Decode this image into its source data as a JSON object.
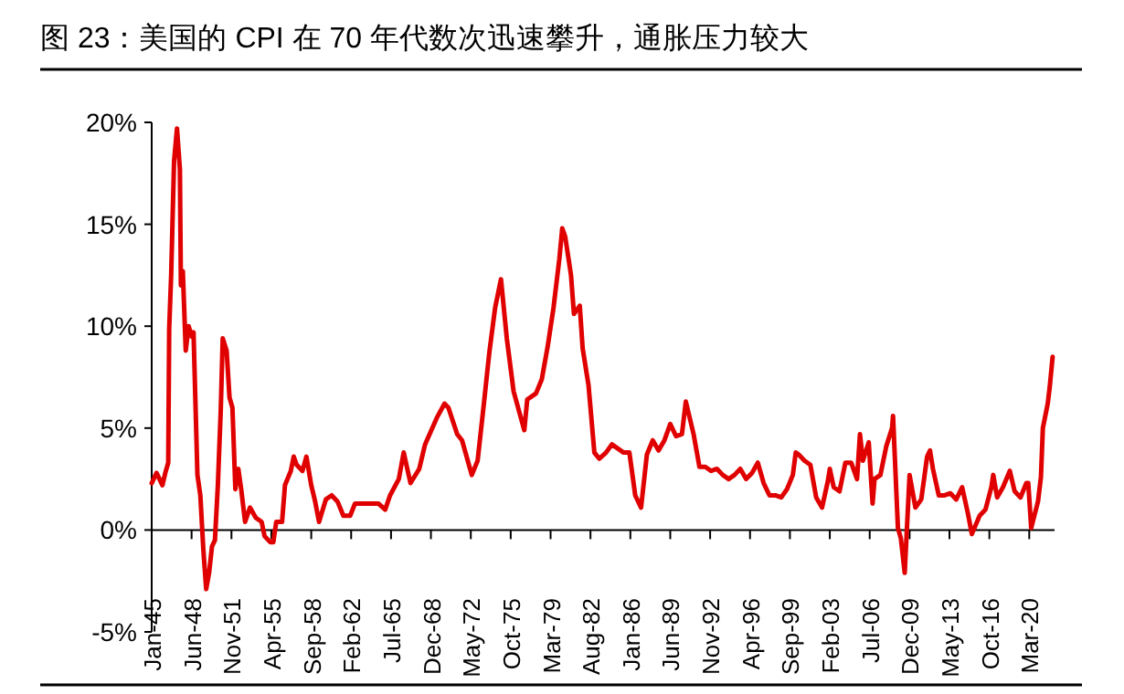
{
  "chart_data": {
    "type": "line",
    "title": "图 23：美国的 CPI 在 70 年代数次迅速攀升，通胀压力较大",
    "x": [
      "1945-01",
      "1945-06",
      "1945-12",
      "1946-03",
      "1946-06",
      "1946-07",
      "1946-09",
      "1946-12",
      "1947-03",
      "1947-06",
      "1947-07",
      "1947-09",
      "1947-12",
      "1948-03",
      "1948-06",
      "1948-08",
      "1948-12",
      "1949-03",
      "1949-06",
      "1949-09",
      "1949-12",
      "1950-03",
      "1950-06",
      "1950-09",
      "1950-12",
      "1951-02",
      "1951-06",
      "1951-09",
      "1951-12",
      "1952-03",
      "1952-06",
      "1952-09",
      "1953-01",
      "1953-06",
      "1953-12",
      "1954-06",
      "1954-09",
      "1955-03",
      "1955-06",
      "1955-09",
      "1956-03",
      "1956-06",
      "1956-12",
      "1957-03",
      "1957-06",
      "1957-12",
      "1958-04",
      "1958-09",
      "1959-01",
      "1959-05",
      "1959-12",
      "1960-06",
      "1960-12",
      "1961-06",
      "1962-01",
      "1962-06",
      "1963-06",
      "1964-06",
      "1965-01",
      "1965-06",
      "1966-03",
      "1966-08",
      "1967-03",
      "1967-12",
      "1968-06",
      "1969-06",
      "1970-02",
      "1970-06",
      "1971-03",
      "1971-08",
      "1972-06",
      "1972-12",
      "1973-06",
      "1973-12",
      "1974-06",
      "1974-12",
      "1975-06",
      "1976-01",
      "1976-12",
      "1977-03",
      "1977-12",
      "1978-06",
      "1978-12",
      "1979-06",
      "1979-12",
      "1980-03",
      "1980-06",
      "1980-12",
      "1981-03",
      "1981-09",
      "1981-12",
      "1982-06",
      "1982-12",
      "1983-05",
      "1983-12",
      "1984-06",
      "1985-06",
      "1985-12",
      "1986-06",
      "1986-12",
      "1987-06",
      "1987-12",
      "1988-06",
      "1988-12",
      "1989-06",
      "1989-12",
      "1990-06",
      "1990-10",
      "1991-06",
      "1991-12",
      "1992-06",
      "1992-12",
      "1993-06",
      "1993-12",
      "1994-06",
      "1994-12",
      "1995-06",
      "1995-12",
      "1996-06",
      "1996-12",
      "1997-06",
      "1997-12",
      "1998-06",
      "1998-12",
      "1999-06",
      "1999-12",
      "2000-03",
      "2000-06",
      "2000-12",
      "2001-06",
      "2001-12",
      "2002-06",
      "2002-12",
      "2003-02",
      "2003-06",
      "2003-12",
      "2004-06",
      "2004-12",
      "2005-06",
      "2005-09",
      "2005-12",
      "2006-06",
      "2006-10",
      "2006-12",
      "2007-06",
      "2007-12",
      "2008-06",
      "2008-07",
      "2008-12",
      "2009-03",
      "2009-07",
      "2009-12",
      "2010-06",
      "2010-12",
      "2011-06",
      "2011-09",
      "2011-12",
      "2012-06",
      "2012-12",
      "2013-06",
      "2013-12",
      "2014-06",
      "2014-12",
      "2015-04",
      "2015-12",
      "2016-06",
      "2016-12",
      "2017-02",
      "2017-06",
      "2017-12",
      "2018-07",
      "2018-12",
      "2019-06",
      "2019-12",
      "2020-02",
      "2020-05",
      "2020-12",
      "2021-03",
      "2021-05",
      "2021-10",
      "2021-12",
      "2022-03"
    ],
    "series": [
      {
        "color": "#e00000",
        "values": [
          2.3,
          2.8,
          2.2,
          2.8,
          3.3,
          9.9,
          12.5,
          18.1,
          19.7,
          17.7,
          12.0,
          12.7,
          8.8,
          10.0,
          9.5,
          9.7,
          2.7,
          1.7,
          -0.9,
          -2.9,
          -2.1,
          -0.8,
          -0.5,
          2.2,
          5.9,
          9.4,
          8.8,
          6.5,
          6.0,
          2.0,
          3.0,
          2.0,
          0.4,
          1.1,
          0.6,
          0.4,
          -0.3,
          -0.6,
          -0.6,
          0.4,
          0.4,
          2.2,
          2.9,
          3.6,
          3.2,
          2.9,
          3.6,
          2.2,
          1.4,
          0.4,
          1.5,
          1.7,
          1.4,
          0.7,
          0.7,
          1.3,
          1.3,
          1.3,
          1.0,
          1.7,
          2.5,
          3.8,
          2.3,
          3.0,
          4.2,
          5.5,
          6.2,
          6.0,
          4.7,
          4.4,
          2.7,
          3.4,
          6.0,
          8.7,
          10.9,
          12.3,
          9.4,
          6.8,
          4.9,
          6.4,
          6.7,
          7.4,
          9.0,
          10.9,
          13.3,
          14.8,
          14.4,
          12.5,
          10.6,
          11.0,
          8.9,
          7.1,
          3.8,
          3.5,
          3.8,
          4.2,
          3.8,
          3.8,
          1.7,
          1.1,
          3.7,
          4.4,
          3.9,
          4.4,
          5.2,
          4.6,
          4.7,
          6.3,
          4.7,
          3.1,
          3.1,
          2.9,
          3.0,
          2.7,
          2.5,
          2.7,
          3.0,
          2.5,
          2.8,
          3.3,
          2.3,
          1.7,
          1.7,
          1.6,
          2.0,
          2.7,
          3.8,
          3.7,
          3.4,
          3.2,
          1.6,
          1.1,
          2.4,
          3.0,
          2.1,
          1.9,
          3.3,
          3.3,
          2.5,
          4.7,
          3.4,
          4.3,
          1.3,
          2.5,
          2.7,
          4.1,
          5.0,
          5.6,
          0.1,
          -0.4,
          -2.1,
          2.7,
          1.1,
          1.5,
          3.6,
          3.9,
          3.0,
          1.7,
          1.7,
          1.8,
          1.5,
          2.1,
          0.8,
          -0.2,
          0.7,
          1.0,
          2.1,
          2.7,
          1.6,
          2.1,
          2.9,
          1.9,
          1.6,
          2.3,
          2.3,
          0.1,
          1.4,
          2.6,
          5.0,
          6.2,
          7.0,
          8.5
        ]
      }
    ],
    "xlim": [
      "1945-01",
      "2022-05"
    ],
    "ylim": [
      -5,
      20
    ],
    "yticks": [
      {
        "value": -5,
        "label": "-5%"
      },
      {
        "value": 0,
        "label": "0%"
      },
      {
        "value": 5,
        "label": "5%"
      },
      {
        "value": 10,
        "label": "10%"
      },
      {
        "value": 15,
        "label": "15%"
      },
      {
        "value": 20,
        "label": "20%"
      }
    ],
    "xticks": [
      {
        "value": "1945-01",
        "label": "Jan-45"
      },
      {
        "value": "1948-06",
        "label": "Jun-48"
      },
      {
        "value": "1951-11",
        "label": "Nov-51"
      },
      {
        "value": "1955-04",
        "label": "Apr-55"
      },
      {
        "value": "1958-09",
        "label": "Sep-58"
      },
      {
        "value": "1962-02",
        "label": "Feb-62"
      },
      {
        "value": "1965-07",
        "label": "Jul-65"
      },
      {
        "value": "1968-12",
        "label": "Dec-68"
      },
      {
        "value": "1972-05",
        "label": "May-72"
      },
      {
        "value": "1975-10",
        "label": "Oct-75"
      },
      {
        "value": "1979-03",
        "label": "Mar-79"
      },
      {
        "value": "1982-08",
        "label": "Aug-82"
      },
      {
        "value": "1986-01",
        "label": "Jan-86"
      },
      {
        "value": "1989-06",
        "label": "Jun-89"
      },
      {
        "value": "1992-11",
        "label": "Nov-92"
      },
      {
        "value": "1996-04",
        "label": "Apr-96"
      },
      {
        "value": "1999-09",
        "label": "Sep-99"
      },
      {
        "value": "2003-02",
        "label": "Feb-03"
      },
      {
        "value": "2006-07",
        "label": "Jul-06"
      },
      {
        "value": "2009-12",
        "label": "Dec-09"
      },
      {
        "value": "2013-05",
        "label": "May-13"
      },
      {
        "value": "2016-10",
        "label": "Oct-16"
      },
      {
        "value": "2020-03",
        "label": "Mar-20"
      }
    ],
    "line_style": "solid"
  }
}
